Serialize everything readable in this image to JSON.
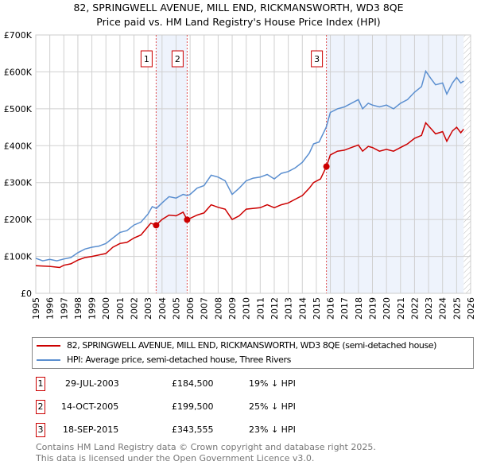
{
  "title": "82, SPRINGWELL AVENUE, MILL END, RICKMANSWORTH, WD3 8QE",
  "subtitle": "Price paid vs. HM Land Registry's House Price Index (HPI)",
  "chart_data": {
    "type": "line",
    "xlim": [
      1995,
      2026
    ],
    "ylim": [
      0,
      700000
    ],
    "y_ticks": [
      0,
      100000,
      200000,
      300000,
      400000,
      500000,
      600000,
      700000
    ],
    "y_tick_labels": [
      "£0",
      "£100K",
      "£200K",
      "£300K",
      "£400K",
      "£500K",
      "£600K",
      "£700K"
    ],
    "x_ticks": [
      1995,
      1996,
      1997,
      1998,
      1999,
      2000,
      2001,
      2002,
      2003,
      2004,
      2005,
      2006,
      2007,
      2008,
      2009,
      2010,
      2011,
      2012,
      2013,
      2014,
      2015,
      2016,
      2017,
      2018,
      2019,
      2020,
      2021,
      2022,
      2023,
      2024,
      2025,
      2026
    ],
    "grid": true,
    "data_end": 2025.5,
    "series": [
      {
        "name": "82, SPRINGWELL AVENUE, MILL END, RICKMANSWORTH, WD3 8QE (semi-detached house)",
        "color": "#cc0000",
        "x": [
          1995,
          1996,
          1996.7,
          1997,
          1997.5,
          1998,
          1998.5,
          1999,
          2000,
          2000.5,
          2001,
          2001.5,
          2002,
          2002.5,
          2003.2,
          2003.58,
          2004,
          2004.5,
          2005,
          2005.5,
          2005.79,
          2006.5,
          2007,
          2007.5,
          2008,
          2008.5,
          2009,
          2009.5,
          2010,
          2011,
          2011.5,
          2012,
          2012.5,
          2013,
          2013.5,
          2014,
          2014.5,
          2014.8,
          2015.3,
          2015.72,
          2016,
          2016.5,
          2017,
          2017.5,
          2018,
          2018.3,
          2018.7,
          2019,
          2019.5,
          2020,
          2020.5,
          2021,
          2021.5,
          2022,
          2022.5,
          2022.8,
          2023.2,
          2023.5,
          2024,
          2024.3,
          2024.7,
          2025,
          2025.3,
          2025.5
        ],
        "y": [
          75000,
          73000,
          70000,
          76000,
          80000,
          90000,
          97000,
          100000,
          108000,
          125000,
          135000,
          138000,
          150000,
          158000,
          190000,
          184500,
          200000,
          212000,
          210000,
          220000,
          199500,
          212000,
          218000,
          240000,
          233000,
          228000,
          200000,
          210000,
          228000,
          232000,
          240000,
          232000,
          240000,
          245000,
          255000,
          265000,
          285000,
          300000,
          310000,
          343555,
          375000,
          385000,
          388000,
          395000,
          402000,
          385000,
          398000,
          395000,
          385000,
          390000,
          385000,
          395000,
          405000,
          420000,
          428000,
          462000,
          445000,
          432000,
          438000,
          412000,
          440000,
          450000,
          435000,
          445000
        ]
      },
      {
        "name": "HPI: Average price, semi-detached house, Three Rivers",
        "color": "#5b8fd0",
        "x": [
          1995,
          1995.5,
          1996,
          1996.5,
          1997,
          1997.5,
          1998,
          1998.5,
          1999,
          1999.5,
          2000,
          2000.5,
          2001,
          2001.5,
          2002,
          2002.5,
          2003,
          2003.3,
          2003.6,
          2004,
          2004.5,
          2005,
          2005.5,
          2005.8,
          2006,
          2006.5,
          2007,
          2007.5,
          2008,
          2008.5,
          2009,
          2009.5,
          2010,
          2010.5,
          2011,
          2011.5,
          2012,
          2012.5,
          2013,
          2013.5,
          2014,
          2014.5,
          2014.8,
          2015.2,
          2015.7,
          2016,
          2016.5,
          2017,
          2017.5,
          2018,
          2018.3,
          2018.7,
          2019,
          2019.5,
          2020,
          2020.5,
          2021,
          2021.5,
          2022,
          2022.5,
          2022.8,
          2023.2,
          2023.5,
          2024,
          2024.3,
          2024.7,
          2025,
          2025.3,
          2025.5
        ],
        "y": [
          95000,
          88000,
          92000,
          88000,
          93000,
          97000,
          110000,
          120000,
          125000,
          128000,
          135000,
          150000,
          165000,
          170000,
          185000,
          193000,
          215000,
          235000,
          230000,
          245000,
          262000,
          258000,
          268000,
          265000,
          268000,
          285000,
          292000,
          320000,
          315000,
          305000,
          268000,
          285000,
          305000,
          312000,
          315000,
          322000,
          310000,
          325000,
          330000,
          340000,
          355000,
          380000,
          405000,
          410000,
          450000,
          490000,
          500000,
          505000,
          515000,
          525000,
          500000,
          515000,
          510000,
          505000,
          510000,
          500000,
          515000,
          525000,
          545000,
          560000,
          602000,
          580000,
          565000,
          570000,
          540000,
          570000,
          585000,
          570000,
          575000
        ]
      }
    ],
    "sales": [
      {
        "label": "1",
        "x": 2003.58,
        "date": "29-JUL-2003",
        "price": "£184,500",
        "price_value": 184500,
        "hpi": "19% ↓ HPI"
      },
      {
        "label": "2",
        "x": 2005.79,
        "date": "14-OCT-2005",
        "price": "£199,500",
        "price_value": 199500,
        "hpi": "25% ↓ HPI"
      },
      {
        "label": "3",
        "x": 2015.72,
        "date": "18-SEP-2015",
        "price": "£343,555",
        "price_value": 343555,
        "hpi": "23% ↓ HPI"
      }
    ]
  },
  "legend": {
    "items": [
      "82, SPRINGWELL AVENUE, MILL END, RICKMANSWORTH, WD3 8QE (semi-detached house)",
      "HPI: Average price, semi-detached house, Three Rivers"
    ]
  },
  "footer": {
    "line1": "Contains HM Land Registry data © Crown copyright and database right 2025.",
    "line2": "This data is licensed under the Open Government Licence v3.0."
  }
}
